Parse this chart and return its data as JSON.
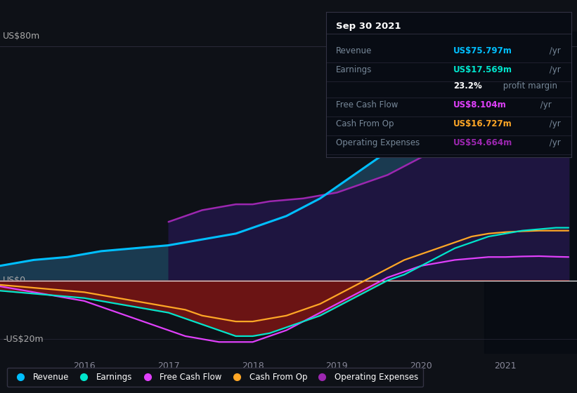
{
  "bg_color": "#0e1117",
  "plot_bg_color": "#0e1117",
  "ylabel_80": "US$80m",
  "ylabel_0": "US$0",
  "ylabel_neg20": "-US$20m",
  "years": [
    2015.0,
    2015.2,
    2015.4,
    2015.6,
    2015.8,
    2016.0,
    2016.2,
    2016.4,
    2016.6,
    2016.8,
    2017.0,
    2017.2,
    2017.4,
    2017.6,
    2017.8,
    2018.0,
    2018.2,
    2018.4,
    2018.6,
    2018.8,
    2019.0,
    2019.2,
    2019.4,
    2019.6,
    2019.8,
    2020.0,
    2020.2,
    2020.4,
    2020.6,
    2020.8,
    2021.0,
    2021.2,
    2021.4,
    2021.6,
    2021.75
  ],
  "revenue": [
    5,
    6,
    7,
    7.5,
    8,
    9,
    10,
    10.5,
    11,
    11.5,
    12,
    13,
    14,
    15,
    16,
    18,
    20,
    22,
    25,
    28,
    32,
    36,
    40,
    44,
    48,
    52,
    57,
    62,
    67,
    70,
    73,
    75,
    77,
    79,
    80
  ],
  "earnings": [
    -3.5,
    -4,
    -4.5,
    -5,
    -5.5,
    -6,
    -7,
    -8,
    -9,
    -10,
    -11,
    -13,
    -15,
    -17,
    -19,
    -19,
    -18,
    -16,
    -14,
    -12,
    -9,
    -6,
    -3,
    0,
    2,
    5,
    8,
    11,
    13,
    15,
    16,
    17,
    17.5,
    18,
    18
  ],
  "free_cash_flow": [
    -2,
    -3,
    -4,
    -5,
    -6,
    -7,
    -9,
    -11,
    -13,
    -15,
    -17,
    -19,
    -20,
    -21,
    -21,
    -21,
    -19,
    -17,
    -14,
    -11,
    -8,
    -5,
    -2,
    1,
    3,
    5,
    6,
    7,
    7.5,
    8,
    8,
    8.2,
    8.3,
    8.1,
    8
  ],
  "cash_from_op": [
    -1.5,
    -2,
    -2.5,
    -3,
    -3.5,
    -4,
    -5,
    -6,
    -7,
    -8,
    -9,
    -10,
    -12,
    -13,
    -14,
    -14,
    -13,
    -12,
    -10,
    -8,
    -5,
    -2,
    1,
    4,
    7,
    9,
    11,
    13,
    15,
    16,
    16.5,
    16.8,
    17,
    17,
    17
  ],
  "op_expenses_start_year": 2017.0,
  "op_expenses": [
    null,
    null,
    null,
    null,
    null,
    null,
    null,
    null,
    null,
    null,
    20,
    22,
    24,
    25,
    26,
    26,
    27,
    27.5,
    28,
    29,
    30,
    32,
    34,
    36,
    39,
    42,
    45,
    48,
    51,
    53,
    54,
    54.5,
    55,
    55,
    55
  ],
  "revenue_color": "#00bfff",
  "earnings_color": "#00e5cc",
  "free_cash_flow_color": "#e040fb",
  "cash_from_op_color": "#ffa726",
  "op_expenses_color": "#9c27b0",
  "xlim": [
    2015.0,
    2021.85
  ],
  "ylim": [
    -25,
    85
  ],
  "highlight_start": 2020.75,
  "highlight_end": 2021.85,
  "info_box": {
    "title": "Sep 30 2021",
    "rows": [
      {
        "label": "Revenue",
        "value": "US$75.797m",
        "suffix": " /yr",
        "color": "#00bfff"
      },
      {
        "label": "Earnings",
        "value": "US$17.569m",
        "suffix": " /yr",
        "color": "#00e5cc"
      },
      {
        "label": "",
        "value": "23.2%",
        "suffix": " profit margin",
        "color": "#ffffff"
      },
      {
        "label": "Free Cash Flow",
        "value": "US$8.104m",
        "suffix": " /yr",
        "color": "#e040fb"
      },
      {
        "label": "Cash From Op",
        "value": "US$16.727m",
        "suffix": " /yr",
        "color": "#ffa726"
      },
      {
        "label": "Operating Expenses",
        "value": "US$54.664m",
        "suffix": " /yr",
        "color": "#9c27b0"
      }
    ]
  },
  "legend_items": [
    {
      "label": "Revenue",
      "color": "#00bfff"
    },
    {
      "label": "Earnings",
      "color": "#00e5cc"
    },
    {
      "label": "Free Cash Flow",
      "color": "#e040fb"
    },
    {
      "label": "Cash From Op",
      "color": "#ffa726"
    },
    {
      "label": "Operating Expenses",
      "color": "#9c27b0"
    }
  ]
}
